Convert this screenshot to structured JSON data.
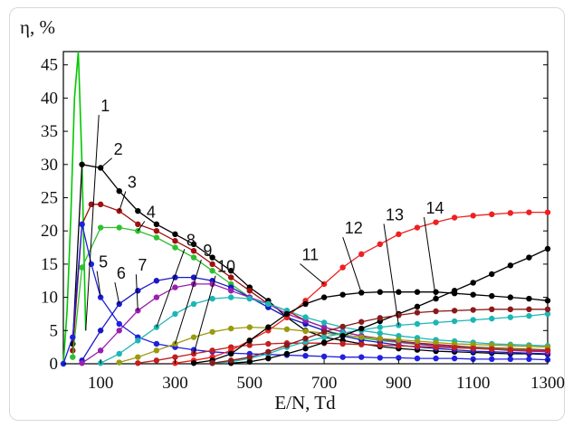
{
  "chart_data": {
    "type": "line",
    "title": "",
    "ylabel": "η, %",
    "xlabel": "E/N, Td",
    "xlim": [
      0,
      1300
    ],
    "ylim": [
      0,
      47
    ],
    "x_ticks": [
      "100",
      "300",
      "500",
      "700",
      "900",
      "1100",
      "1300"
    ],
    "x_tick_values": [
      100,
      300,
      500,
      700,
      900,
      1100,
      1300
    ],
    "y_ticks": [
      "0",
      "5",
      "10",
      "15",
      "20",
      "25",
      "30",
      "35",
      "40",
      "45"
    ],
    "y_tick_values": [
      0,
      5,
      10,
      15,
      20,
      25,
      30,
      35,
      40,
      45
    ],
    "grid": false,
    "series": [
      {
        "name": "1",
        "color": "#00c800",
        "markers": false,
        "x": [
          0,
          10,
          20,
          30,
          40,
          50,
          60
        ],
        "y": [
          0,
          8,
          22,
          40,
          60,
          30,
          5
        ]
      },
      {
        "name": "2",
        "color": "#000000",
        "markers": true,
        "x": [
          25,
          50,
          100,
          150,
          200,
          250,
          300,
          350,
          400,
          450,
          500,
          550,
          600,
          650,
          700,
          750,
          800,
          850,
          900,
          950,
          1000,
          1050,
          1100,
          1150,
          1200,
          1250,
          1300
        ],
        "y": [
          3,
          30,
          29.5,
          26,
          23,
          21,
          19.5,
          18,
          16,
          14,
          11.5,
          9.5,
          7,
          5,
          4,
          3.5,
          3,
          2.6,
          2.3,
          2.1,
          1.9,
          1.8,
          1.7,
          1.6,
          1.5,
          1.5,
          1.4
        ]
      },
      {
        "name": "3",
        "color": "#a01010",
        "markers": true,
        "x": [
          25,
          50,
          75,
          100,
          150,
          200,
          250,
          300,
          350,
          400,
          450,
          500,
          550,
          600,
          650,
          700,
          750,
          800,
          850,
          900,
          950,
          1000,
          1050,
          1100,
          1150,
          1200,
          1250,
          1300
        ],
        "y": [
          2,
          21,
          24,
          24,
          23,
          21,
          20,
          18.5,
          17,
          15,
          13,
          11,
          9,
          8,
          6.5,
          5.5,
          4.8,
          4.2,
          3.8,
          3.4,
          3.1,
          2.9,
          2.7,
          2.5,
          2.4,
          2.3,
          2.2,
          2.1
        ]
      },
      {
        "name": "4",
        "color": "#2fbf2f",
        "markers": true,
        "x": [
          25,
          50,
          100,
          150,
          200,
          250,
          300,
          350,
          400,
          450,
          500,
          550,
          600,
          650,
          700,
          750,
          800,
          850,
          900,
          950,
          1000,
          1050,
          1100,
          1150,
          1200,
          1250,
          1300
        ],
        "y": [
          1,
          14.5,
          20.5,
          20.5,
          20,
          19,
          17.5,
          16,
          14,
          12,
          10,
          8.5,
          7,
          6,
          5,
          4.4,
          3.9,
          3.5,
          3.2,
          2.9,
          2.7,
          2.5,
          2.4,
          2.3,
          2.2,
          2.1,
          2
        ]
      },
      {
        "name": "5",
        "color": "#2020e0",
        "markers": true,
        "x": [
          0,
          25,
          50,
          75,
          100,
          150,
          200,
          250,
          300,
          350,
          400,
          450,
          500,
          550,
          600,
          650,
          700,
          750,
          800,
          850,
          900,
          950,
          1000,
          1050,
          1100,
          1150,
          1200,
          1250,
          1300
        ],
        "y": [
          0,
          4,
          21,
          15,
          10,
          6,
          4,
          3,
          2.5,
          2.1,
          1.8,
          1.6,
          1.5,
          1.4,
          1.3,
          1.2,
          1.1,
          1,
          1,
          0.9,
          0.9,
          0.8,
          0.8,
          0.8,
          0.7,
          0.7,
          0.7,
          0.7,
          0.6
        ]
      },
      {
        "name": "6",
        "color": "#1818c8",
        "markers": true,
        "x": [
          50,
          100,
          150,
          200,
          250,
          300,
          350,
          400,
          450,
          500,
          550,
          600,
          650,
          700,
          750,
          800,
          850,
          900,
          950,
          1000,
          1050,
          1100,
          1150,
          1200,
          1250,
          1300
        ],
        "y": [
          0.5,
          5,
          9,
          11,
          12.5,
          13,
          13,
          12.5,
          11.5,
          10,
          8.5,
          7,
          6,
          5,
          4.2,
          3.6,
          3.2,
          2.8,
          2.5,
          2.3,
          2.1,
          1.9,
          1.8,
          1.7,
          1.6,
          1.5
        ]
      },
      {
        "name": "7",
        "color": "#9a1fb0",
        "markers": true,
        "x": [
          50,
          100,
          150,
          200,
          250,
          300,
          350,
          400,
          450,
          500,
          550,
          600,
          650,
          700,
          750,
          800,
          850,
          900,
          950,
          1000,
          1050,
          1100,
          1150,
          1200,
          1250,
          1300
        ],
        "y": [
          0.1,
          2,
          5,
          8,
          10,
          11.5,
          12,
          12,
          11,
          10,
          9,
          7.5,
          6.5,
          5.5,
          4.8,
          4.2,
          3.7,
          3.3,
          3,
          2.7,
          2.5,
          2.3,
          2.2,
          2,
          1.9,
          1.8
        ]
      },
      {
        "name": "8",
        "color": "#1cb6b6",
        "markers": true,
        "x": [
          100,
          150,
          200,
          250,
          300,
          350,
          400,
          450,
          500,
          550,
          600,
          650,
          700,
          750,
          800,
          850,
          900,
          950,
          1000,
          1050,
          1100,
          1150,
          1200,
          1250,
          1300
        ],
        "y": [
          0.1,
          1.5,
          3.5,
          5.5,
          7.5,
          9,
          9.8,
          10,
          9.8,
          9,
          8,
          7,
          6.2,
          5.5,
          5,
          4.6,
          4.2,
          3.9,
          3.6,
          3.4,
          3.2,
          3,
          2.9,
          2.8,
          2.7
        ]
      },
      {
        "name": "9",
        "color": "#9a9a10",
        "markers": true,
        "x": [
          150,
          200,
          250,
          300,
          350,
          400,
          450,
          500,
          550,
          600,
          650,
          700,
          750,
          800,
          850,
          900,
          950,
          1000,
          1050,
          1100,
          1150,
          1200,
          1250,
          1300
        ],
        "y": [
          0.2,
          1,
          2,
          3,
          4,
          4.8,
          5.3,
          5.5,
          5.4,
          5.2,
          4.9,
          4.6,
          4.3,
          4,
          3.8,
          3.6,
          3.4,
          3.2,
          3,
          2.9,
          2.8,
          2.7,
          2.6,
          2.5
        ]
      },
      {
        "name": "10",
        "color": "#c02020",
        "markers": true,
        "x": [
          200,
          250,
          300,
          350,
          400,
          450,
          500,
          550,
          600,
          650,
          700,
          750,
          800,
          850,
          900,
          950,
          1000,
          1050,
          1100,
          1150,
          1200,
          1250,
          1300
        ],
        "y": [
          0.1,
          0.5,
          1,
          1.5,
          2,
          2.5,
          2.8,
          3,
          3.1,
          3.1,
          3.1,
          3,
          2.9,
          2.8,
          2.7,
          2.6,
          2.5,
          2.4,
          2.3,
          2.2,
          2.1,
          2,
          2
        ]
      },
      {
        "name": "11",
        "color": "#ee2020",
        "markers": true,
        "x": [
          300,
          350,
          400,
          450,
          500,
          550,
          600,
          650,
          700,
          750,
          800,
          850,
          900,
          950,
          1000,
          1050,
          1100,
          1150,
          1200,
          1250,
          1300
        ],
        "y": [
          0.1,
          0.5,
          1,
          2,
          3.5,
          5,
          7,
          9.5,
          12,
          14.5,
          16.5,
          18,
          19.5,
          20.5,
          21.3,
          22,
          22.3,
          22.5,
          22.7,
          22.8,
          22.8
        ]
      },
      {
        "name": "12",
        "color": "#000000",
        "markers": true,
        "x": [
          350,
          400,
          450,
          500,
          550,
          600,
          650,
          700,
          750,
          800,
          850,
          900,
          950,
          1000,
          1050,
          1100,
          1150,
          1200,
          1250,
          1300
        ],
        "y": [
          0.1,
          0.5,
          1.5,
          3.5,
          5.5,
          7.5,
          9,
          10,
          10.4,
          10.7,
          10.8,
          10.8,
          10.8,
          10.8,
          10.6,
          10.4,
          10.2,
          10,
          9.8,
          9.5
        ]
      },
      {
        "name": "13",
        "color": "#1cb6b6",
        "markers": true,
        "x": [
          400,
          450,
          500,
          550,
          600,
          650,
          700,
          750,
          800,
          850,
          900,
          950,
          1000,
          1050,
          1100,
          1150,
          1200,
          1250,
          1300
        ],
        "y": [
          0.1,
          0.3,
          0.8,
          1.5,
          2.5,
          3.3,
          4,
          4.6,
          5.1,
          5.5,
          5.8,
          6,
          6.2,
          6.4,
          6.6,
          6.8,
          7,
          7.2,
          7.5
        ]
      },
      {
        "name": "14",
        "color": "#000000",
        "markers": true,
        "x": [
          450,
          500,
          550,
          600,
          650,
          700,
          750,
          800,
          850,
          900,
          950,
          1000,
          1050,
          1100,
          1150,
          1200,
          1250,
          1300
        ],
        "y": [
          0.1,
          0.3,
          0.8,
          1.5,
          2.3,
          3.2,
          4.2,
          5.3,
          6.4,
          7.5,
          8.6,
          9.8,
          11,
          12.2,
          13.5,
          14.8,
          16,
          17.3
        ]
      },
      {
        "name": "",
        "color": "#8a1a1a",
        "markers": true,
        "x": [
          400,
          450,
          500,
          550,
          600,
          650,
          700,
          750,
          800,
          850,
          900,
          950,
          1000,
          1050,
          1100,
          1150,
          1200,
          1250,
          1300
        ],
        "y": [
          0.1,
          0.5,
          1,
          1.8,
          2.8,
          3.8,
          4.8,
          5.6,
          6.3,
          6.9,
          7.3,
          7.7,
          7.9,
          8,
          8.1,
          8.2,
          8.2,
          8.2,
          8.2
        ]
      }
    ],
    "curve_labels": [
      {
        "text": "1",
        "series": "1",
        "at_x": 60,
        "lx": 105,
        "ly": 38
      },
      {
        "text": "2",
        "series": "2",
        "at_x": 100,
        "lx": 140,
        "ly": 31.5
      },
      {
        "text": "3",
        "series": "3",
        "at_x": 150,
        "lx": 177,
        "ly": 26.5
      },
      {
        "text": "4",
        "series": "4",
        "at_x": 200,
        "lx": 228,
        "ly": 22
      },
      {
        "text": "5",
        "series": "5",
        "at_x": 100,
        "lx": 100,
        "ly": 14.5
      },
      {
        "text": "6",
        "series": "6",
        "at_x": 150,
        "lx": 148,
        "ly": 12.8
      },
      {
        "text": "7",
        "series": "7",
        "at_x": 200,
        "lx": 205,
        "ly": 14
      },
      {
        "text": "8",
        "series": "8",
        "at_x": 250,
        "lx": 335,
        "ly": 17.8
      },
      {
        "text": "9",
        "series": "9",
        "at_x": 300,
        "lx": 380,
        "ly": 16.2
      },
      {
        "text": "10",
        "series": "10",
        "at_x": 350,
        "lx": 418,
        "ly": 13.8
      },
      {
        "text": "11",
        "series": "11",
        "at_x": 700,
        "lx": 645,
        "ly": 15.6
      },
      {
        "text": "12",
        "series": "12",
        "at_x": 800,
        "lx": 760,
        "ly": 19.6
      },
      {
        "text": "13",
        "series": "13",
        "at_x": 900,
        "lx": 870,
        "ly": 21.6
      },
      {
        "text": "14",
        "series": "14",
        "at_x": 1000,
        "lx": 978,
        "ly": 22.6
      }
    ]
  }
}
